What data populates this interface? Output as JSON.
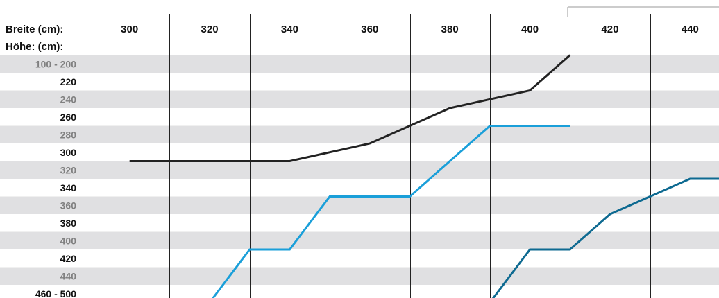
{
  "chart_data": {
    "type": "table",
    "row_header_label": "Breite (cm):",
    "col_header_label": "Höhe: (cm):",
    "columns": [
      "300",
      "320",
      "340",
      "360",
      "380",
      "400",
      "420",
      "440"
    ],
    "rows": [
      "100 - 200",
      "220",
      "240",
      "260",
      "280",
      "300",
      "320",
      "340",
      "360",
      "380",
      "400",
      "420",
      "440",
      "460 - 500"
    ],
    "row_label_colors": [
      "#808080",
      "#111111"
    ],
    "stripe_color": "#e0e0e2",
    "series": [
      {
        "color": "#222222",
        "steps": [
          [
            "300",
            "300"
          ],
          [
            "340",
            "300"
          ],
          [
            "360",
            "280"
          ],
          [
            "380",
            "240"
          ],
          [
            "400",
            "220"
          ],
          [
            "410",
            "200"
          ]
        ]
      },
      {
        "color": "#1a9fd9",
        "steps": [
          [
            "310",
            "460 - 500"
          ],
          [
            "320",
            "460 - 500"
          ],
          [
            "330",
            "400"
          ],
          [
            "340",
            "400"
          ],
          [
            "350",
            "340"
          ],
          [
            "370",
            "340"
          ],
          [
            "380",
            "300"
          ],
          [
            "390",
            "260"
          ],
          [
            "410",
            "260"
          ]
        ]
      },
      {
        "color": "#0e6a91",
        "steps": [
          [
            "370",
            "460 - 500"
          ],
          [
            "390",
            "460 - 500"
          ],
          [
            "400",
            "400"
          ],
          [
            "410",
            "400"
          ],
          [
            "420",
            "360"
          ],
          [
            "440",
            "320"
          ],
          [
            "450",
            "320"
          ]
        ]
      }
    ]
  }
}
